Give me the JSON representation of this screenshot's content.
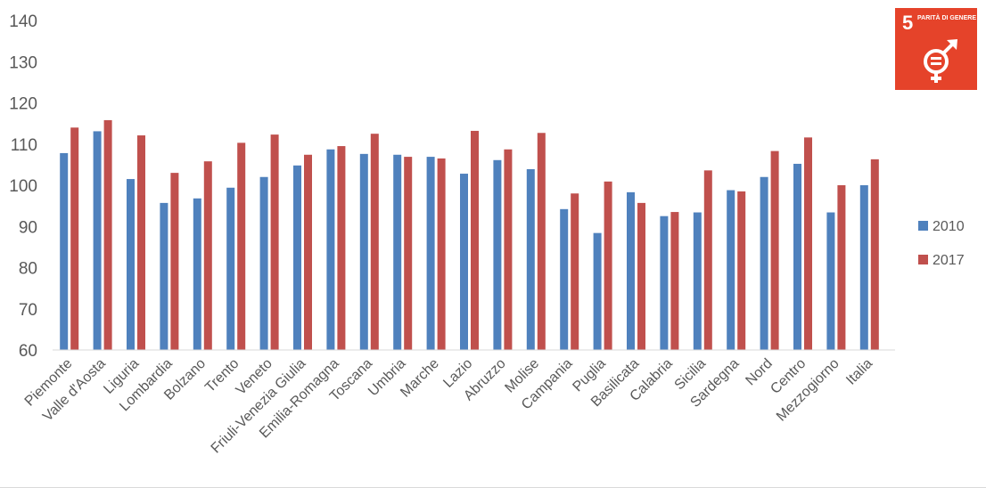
{
  "chart_data": {
    "type": "bar",
    "title": "",
    "xlabel": "",
    "ylabel": "",
    "ylim": [
      60,
      140
    ],
    "yticks": [
      60,
      70,
      80,
      90,
      100,
      110,
      120,
      130,
      140
    ],
    "grid": false,
    "legend_placement": "right",
    "categories": [
      "Piemonte",
      "Valle d'Aosta",
      "Liguria",
      "Lombardia",
      "Bolzano",
      "Trento",
      "Veneto",
      "Friuli-Venezia Giulia",
      "Emilia-Romagna",
      "Toscana",
      "Umbria",
      "Marche",
      "Lazio",
      "Abruzzo",
      "Molise",
      "Campania",
      "Puglia",
      "Basilicata",
      "Calabria",
      "Sicilia",
      "Sardegna",
      "Nord",
      "Centro",
      "Mezzogiorno",
      "Italia"
    ],
    "series": [
      {
        "name": "2010",
        "color": "#4f81bd",
        "values": [
          107.8,
          113.1,
          101.5,
          95.7,
          96.8,
          99.4,
          102.0,
          104.8,
          108.7,
          107.6,
          107.4,
          106.9,
          102.8,
          106.1,
          103.9,
          94.2,
          88.4,
          98.3,
          92.5,
          93.4,
          98.8,
          102.0,
          105.2,
          93.4,
          100.0
        ]
      },
      {
        "name": "2017",
        "color": "#c0504d",
        "values": [
          114.0,
          115.8,
          112.1,
          103.0,
          105.8,
          110.3,
          112.3,
          107.4,
          109.5,
          112.5,
          106.9,
          106.5,
          113.2,
          108.7,
          112.7,
          98.0,
          100.9,
          95.7,
          93.5,
          103.6,
          98.5,
          108.3,
          111.6,
          100.0,
          106.3
        ]
      }
    ]
  },
  "badge": {
    "number": "5",
    "text": "PARITÀ DI GENERE",
    "color": "#e5432a",
    "icon": "gender-equality-icon"
  }
}
